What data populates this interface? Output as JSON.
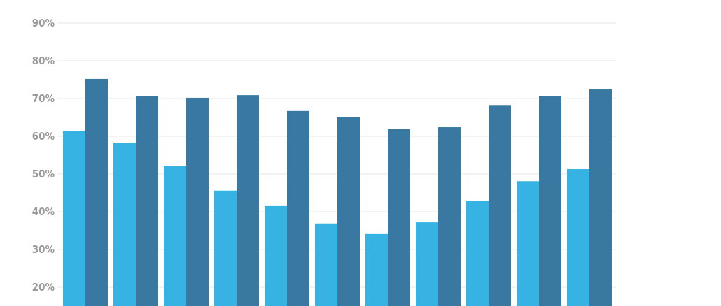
{
  "chart_data": {
    "type": "bar",
    "title": "",
    "xlabel": "",
    "ylabel": "",
    "ylim": [
      13,
      90
    ],
    "yticks": [
      20,
      30,
      40,
      50,
      60,
      70,
      80,
      90
    ],
    "ytick_labels": [
      "20%",
      "30%",
      "40%",
      "50%",
      "60%",
      "70%",
      "80%",
      "90%"
    ],
    "grid": true,
    "categories": [
      "",
      "",
      "",
      "",
      "",
      "",
      "",
      "",
      "",
      "",
      ""
    ],
    "series": [
      {
        "color": "#36b2e3",
        "values": [
          61.3,
          58.3,
          52.2,
          45.6,
          41.5,
          36.9,
          34.1,
          37.2,
          42.8,
          48.1,
          51.3
        ]
      },
      {
        "color": "#3979a1",
        "values": [
          75.2,
          70.7,
          70.2,
          70.9,
          66.7,
          65.0,
          62.0,
          62.4,
          68.1,
          70.6,
          72.4
        ]
      }
    ]
  }
}
